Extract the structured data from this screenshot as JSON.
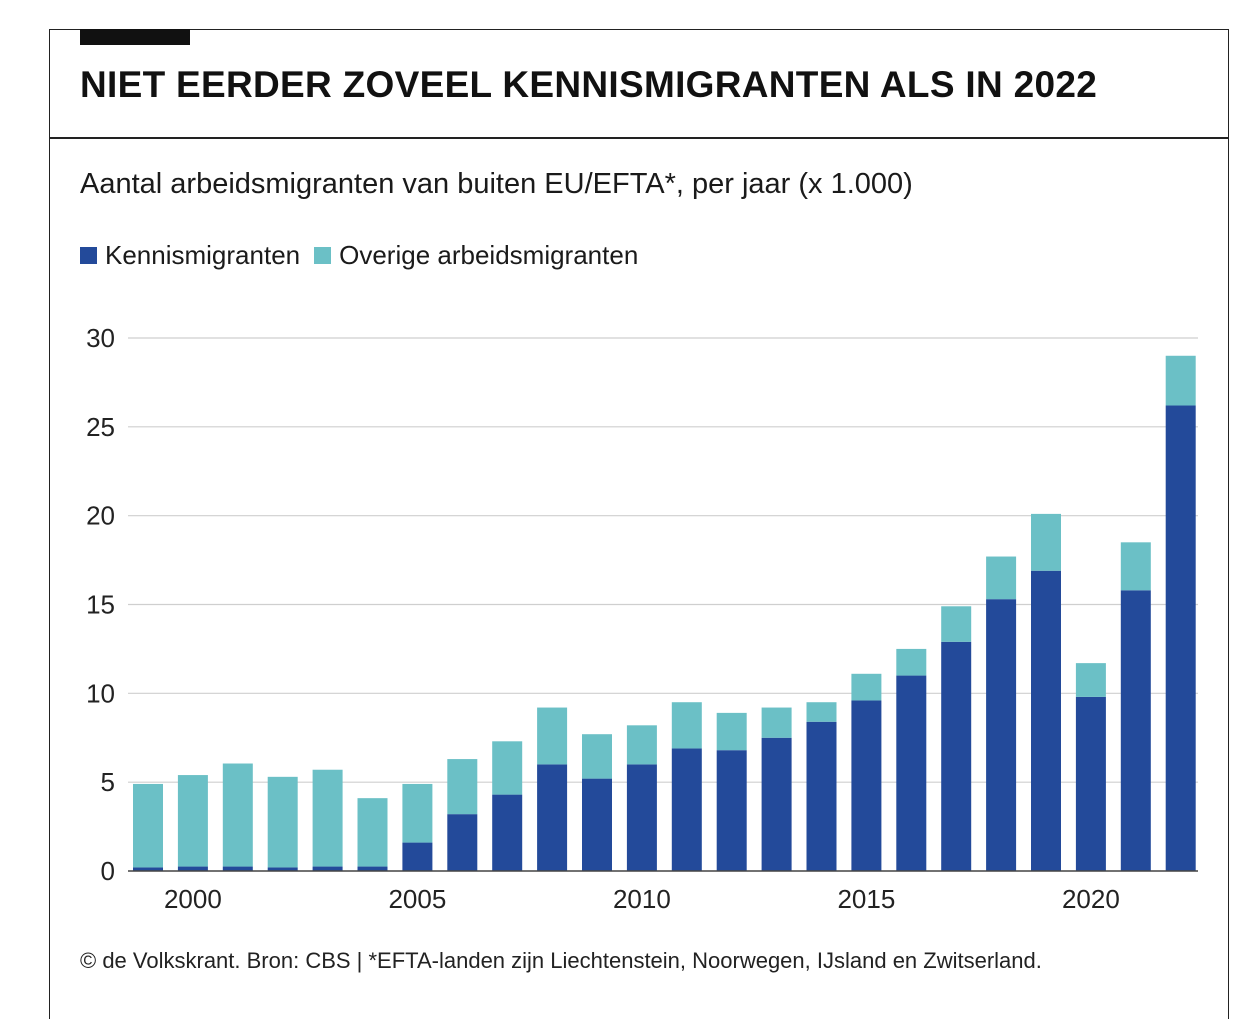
{
  "header": {
    "title": "NIET EERDER ZOVEEL KENNISMIGRANTEN ALS IN 2022",
    "subtitle": "Aantal arbeidsmigranten van buiten EU/EFTA*, per jaar (x 1.000)"
  },
  "legend": [
    {
      "label": "Kennismigranten",
      "color": "#234a9a"
    },
    {
      "label": "Overige arbeidsmigranten",
      "color": "#6bc0c6"
    }
  ],
  "footer": {
    "source": "© de Volkskrant. Bron: CBS | *EFTA-landen zijn Liechtenstein, Noorwegen, IJsland en Zwitserland."
  },
  "colors": {
    "kennis": "#234a9a",
    "overig": "#6bc0c6",
    "grid": "#cfcfcf"
  },
  "chart_data": {
    "type": "bar",
    "stacked": true,
    "x": [
      1999,
      2000,
      2001,
      2002,
      2003,
      2004,
      2005,
      2006,
      2007,
      2008,
      2009,
      2010,
      2011,
      2012,
      2013,
      2014,
      2015,
      2016,
      2017,
      2018,
      2019,
      2020,
      2021,
      2022
    ],
    "x_tick_labels": [
      "2000",
      "2005",
      "2010",
      "2015",
      "2020"
    ],
    "x_tick_values": [
      2000,
      2005,
      2010,
      2015,
      2020
    ],
    "series": [
      {
        "name": "Kennismigranten",
        "color": "#234a9a",
        "values": [
          0.2,
          0.25,
          0.25,
          0.2,
          0.25,
          0.25,
          1.6,
          3.2,
          4.3,
          6.0,
          5.2,
          6.0,
          6.9,
          6.8,
          7.5,
          8.4,
          9.6,
          11.0,
          12.9,
          15.3,
          16.9,
          9.8,
          15.8,
          26.2
        ]
      },
      {
        "name": "Overige arbeidsmigranten",
        "color": "#6bc0c6",
        "values": [
          4.7,
          5.15,
          5.8,
          5.1,
          5.45,
          3.85,
          3.3,
          3.1,
          3.0,
          3.2,
          2.5,
          2.2,
          2.6,
          2.1,
          1.7,
          1.1,
          1.5,
          1.5,
          2.0,
          2.4,
          3.2,
          1.9,
          2.7,
          2.8
        ]
      }
    ],
    "y_ticks": [
      0,
      5,
      10,
      15,
      20,
      25,
      30
    ],
    "ylim": [
      0,
      30
    ],
    "xlabel": "",
    "ylabel": "",
    "grid": true,
    "legend_position": "top-left"
  }
}
